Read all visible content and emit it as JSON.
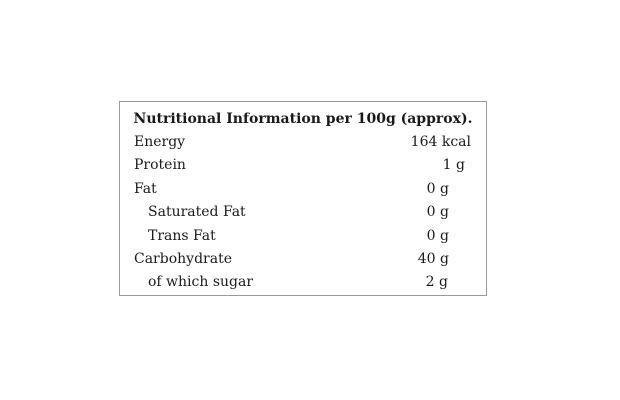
{
  "table": {
    "title": "Nutritional Information per 100g (approx).",
    "rows": [
      [
        "Energy",
        "164 kcal"
      ],
      [
        "Protein",
        "1 g"
      ],
      [
        "Fat",
        "0 g"
      ],
      [
        "Saturated Fat",
        "0 g"
      ],
      [
        "Trans Fat",
        "0 g"
      ],
      [
        "Carbohydrate",
        "40 g"
      ],
      [
        "of which sugar",
        "2 g"
      ]
    ]
  }
}
